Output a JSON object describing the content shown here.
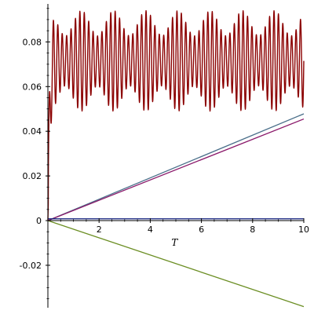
{
  "chart_data": {
    "type": "line",
    "title": "",
    "xlabel": "T",
    "ylabel": "",
    "xlim": [
      0,
      10
    ],
    "ylim": [
      -0.039,
      0.097
    ],
    "grid": false,
    "legend": "none",
    "x_ticks": [
      2,
      4,
      6,
      8,
      10
    ],
    "x_tick_labels": [
      "2",
      "4",
      "6",
      "8",
      "10"
    ],
    "y_ticks": [
      -0.02,
      0,
      0.02,
      0.04,
      0.06,
      0.08
    ],
    "y_tick_labels": [
      "-0.02",
      "0",
      "0.02",
      "0.04",
      "0.06",
      "0.08"
    ],
    "series": [
      {
        "color": "#8b0000",
        "style": "oscillating",
        "x": [
          0,
          0.05,
          0.1,
          0.15,
          0.2,
          0.3,
          0.5,
          1,
          2,
          3,
          4,
          5,
          6,
          7,
          8,
          9,
          10
        ],
        "y": [
          0.0,
          0.03,
          0.06,
          0.07,
          0.085,
          0.045,
          0.092,
          0.05,
          0.094,
          0.049,
          0.095,
          0.05,
          0.094,
          0.05,
          0.094,
          0.05,
          0.062
        ],
        "oscillation": {
          "center": 0.0715,
          "amplitude": 0.0225,
          "cycles": 58,
          "ramp": 0.18
        }
      },
      {
        "color": "#4a6f8a",
        "style": "linear",
        "x": [
          0,
          10
        ],
        "y": [
          0.0,
          0.0478
        ]
      },
      {
        "color": "#8b1a6b",
        "style": "linear",
        "x": [
          0,
          10
        ],
        "y": [
          0.0,
          0.0455
        ]
      },
      {
        "color": "#0b1a7a",
        "style": "linear",
        "x": [
          0,
          10
        ],
        "y": [
          0.0008,
          0.0008
        ]
      },
      {
        "color": "#6b8e23",
        "style": "linear",
        "x": [
          0,
          10
        ],
        "y": [
          0.0,
          -0.0385
        ]
      }
    ]
  }
}
